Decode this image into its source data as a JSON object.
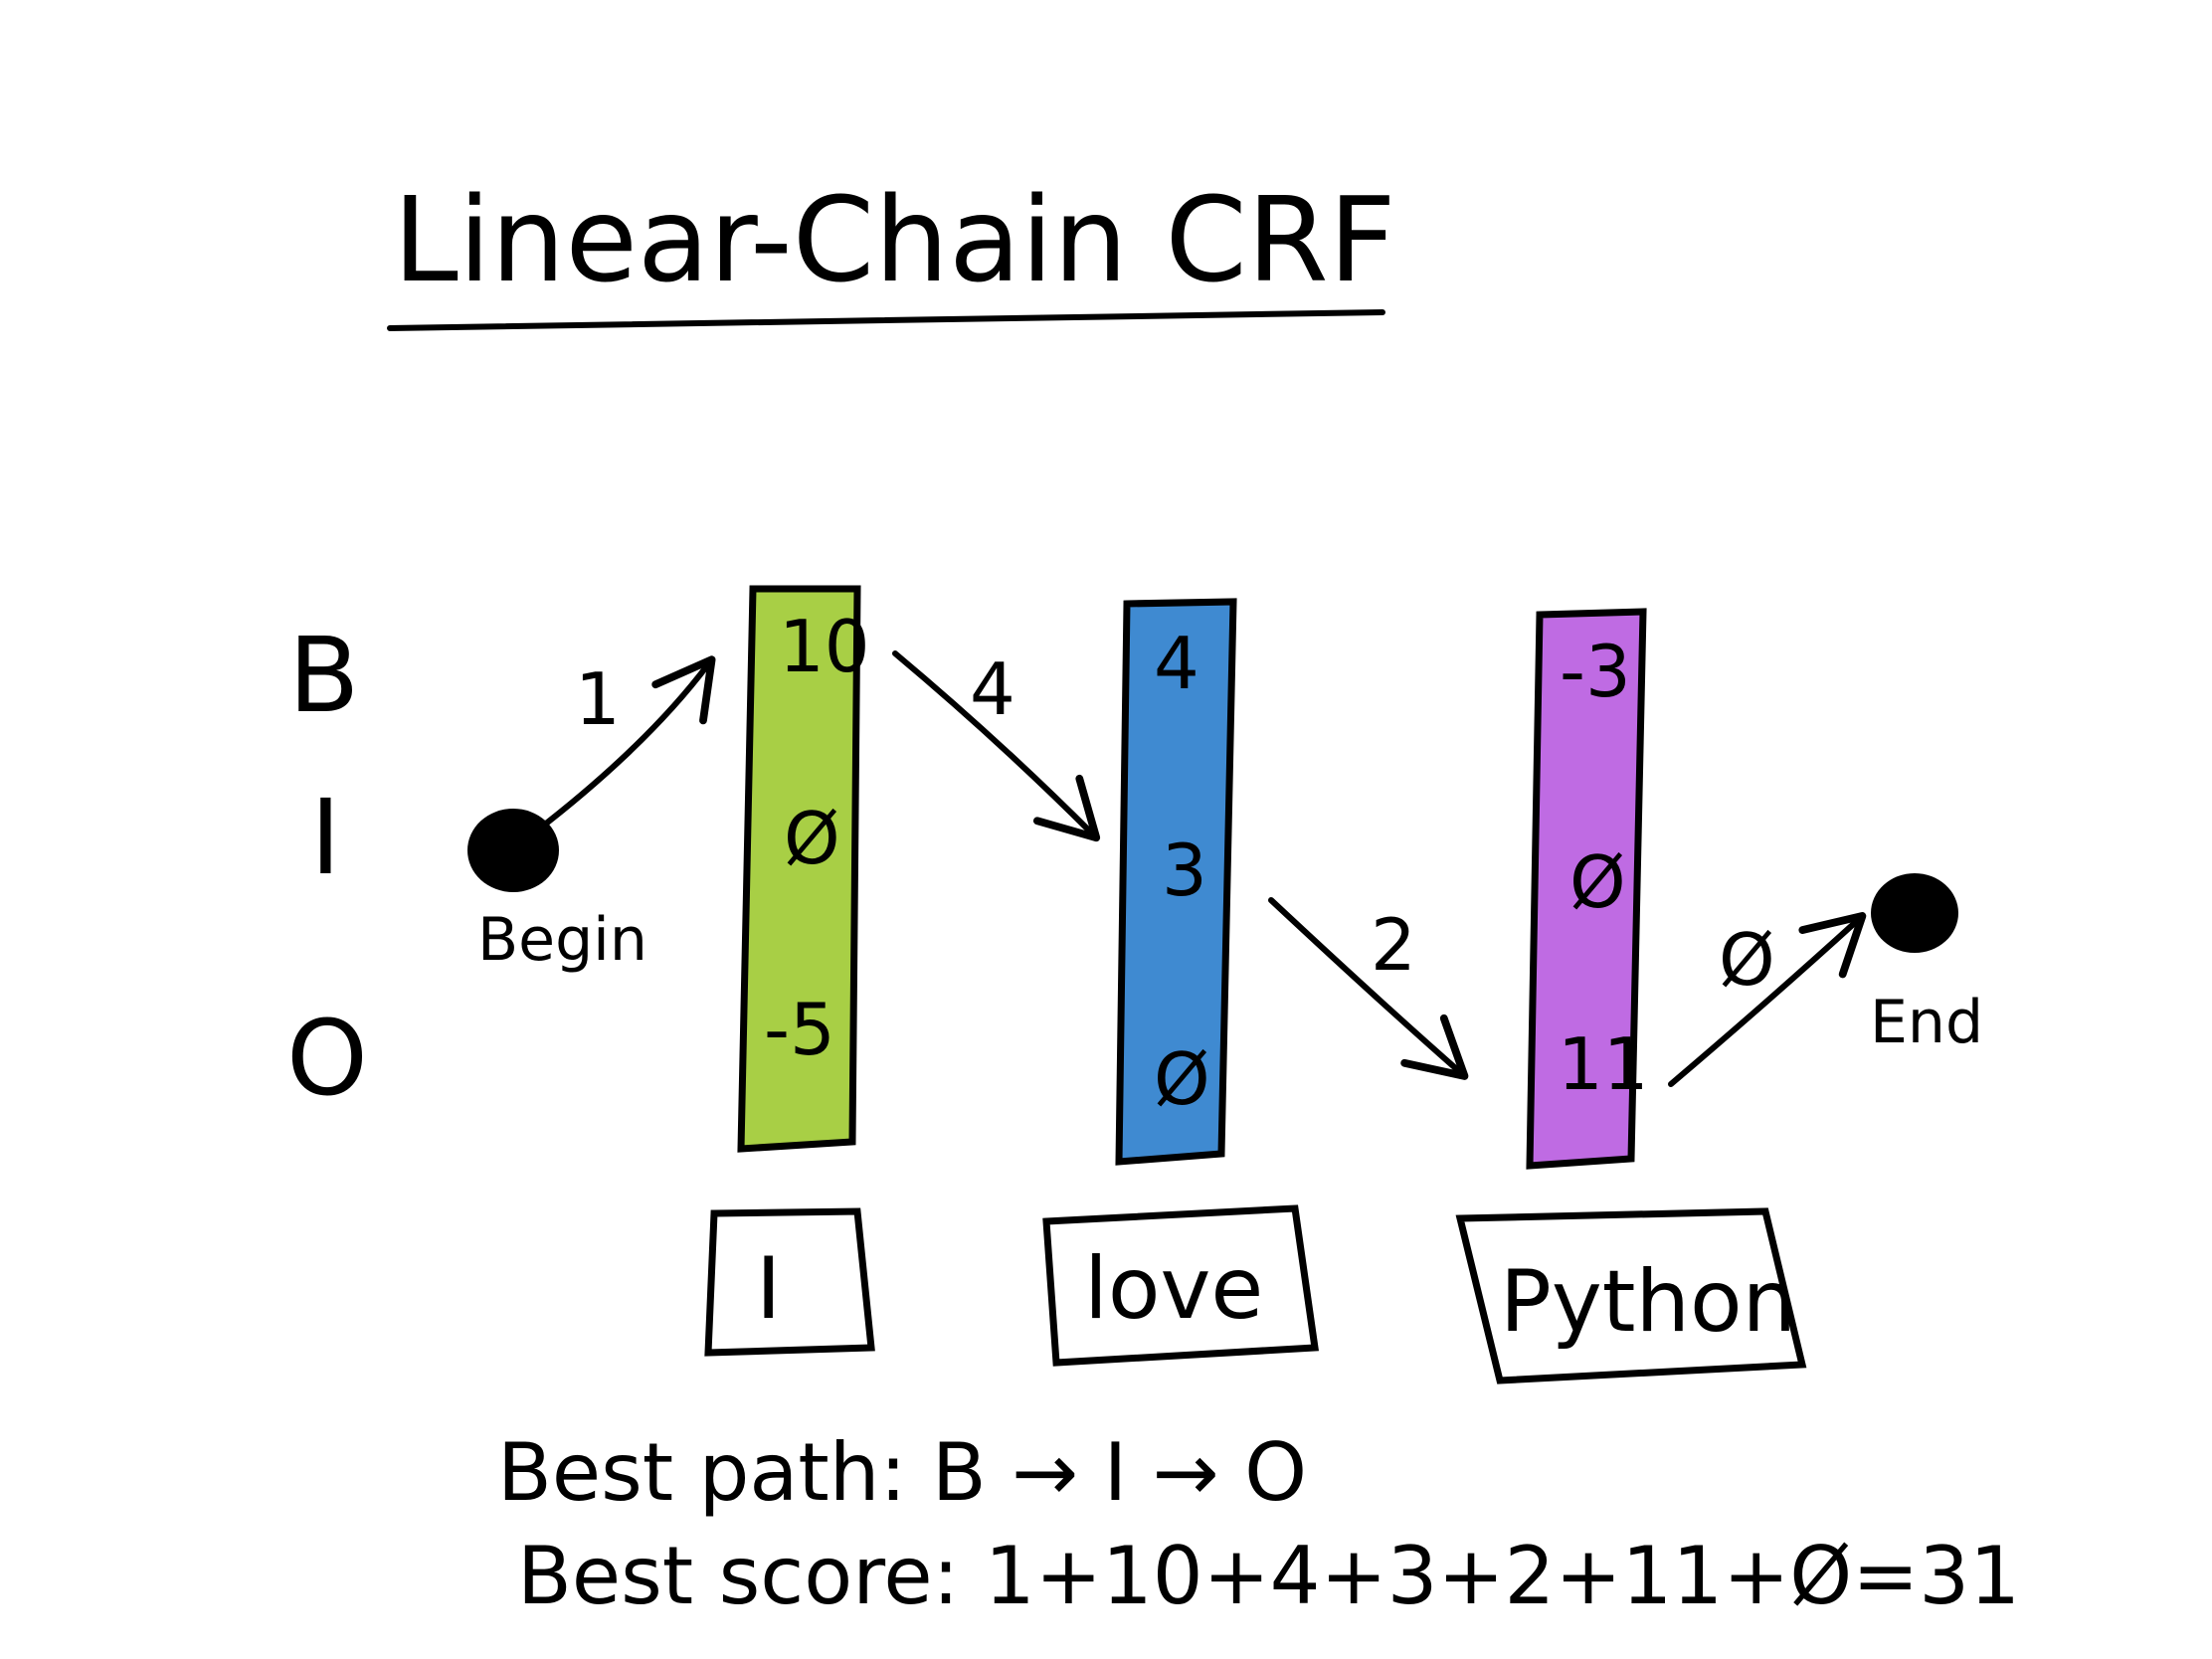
{
  "title": "Linear-Chain CRF",
  "tags": [
    "B",
    "I",
    "O"
  ],
  "nodes": {
    "begin": "Begin",
    "end": "End"
  },
  "columns": [
    {
      "word": "I",
      "color": "#a8cf45",
      "scores": {
        "B": "10",
        "I": "Ø",
        "O": "-5"
      }
    },
    {
      "word": "love",
      "color": "#3f8ad1",
      "scores": {
        "B": "4",
        "I": "3",
        "O": "Ø"
      }
    },
    {
      "word": "Python",
      "color": "#bf6be3",
      "scores": {
        "B": "-3",
        "I": "Ø",
        "O": "11"
      }
    }
  ],
  "transitions": [
    "1",
    "4",
    "2",
    "Ø"
  ],
  "summary": {
    "best_path": "Best path: B → I → O",
    "best_score": "Best score: 1+10+4+3+2+11+Ø=31"
  }
}
